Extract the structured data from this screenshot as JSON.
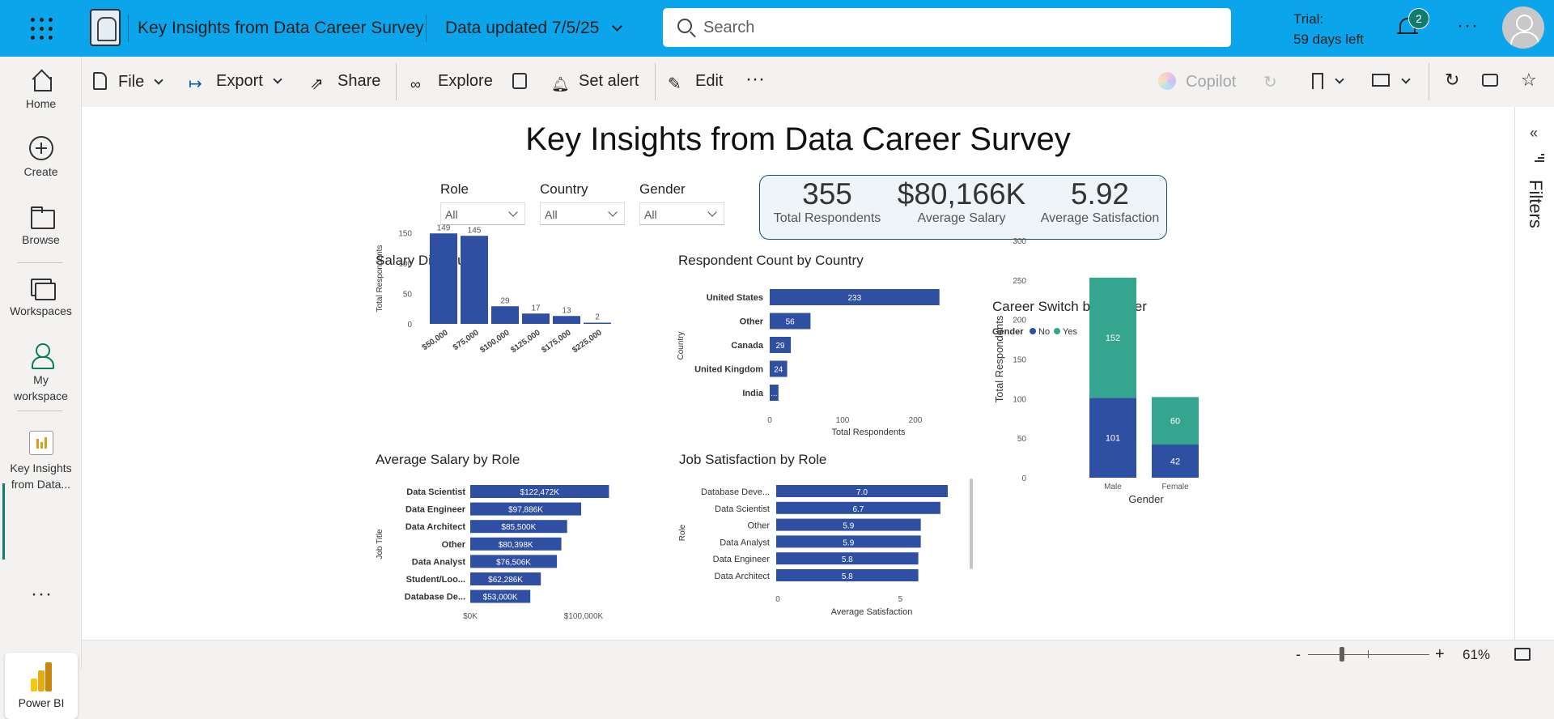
{
  "topbar": {
    "report_title": "Key Insights from Data Career Survey",
    "data_updated": "Data updated 7/5/25",
    "search_placeholder": "Search",
    "trial_line1": "Trial:",
    "trial_line2": "59 days left",
    "notification_count": "2",
    "more": "···"
  },
  "leftnav": {
    "items": [
      {
        "label": "Home"
      },
      {
        "label": "Create"
      },
      {
        "label": "Browse"
      },
      {
        "label": "Workspaces"
      },
      {
        "label": "My workspace"
      },
      {
        "label": "Key Insights from Data..."
      }
    ],
    "more": "···",
    "app_label": "Power BI"
  },
  "toolbar": {
    "file": "File",
    "export": "Export",
    "share": "Share",
    "explore": "Explore",
    "set_alert": "Set alert",
    "edit": "Edit",
    "more": "···",
    "copilot": "Copilot"
  },
  "filters_pane": {
    "label": "Filters"
  },
  "status": {
    "zoom": "61%",
    "minus": "-",
    "plus": "+"
  },
  "report": {
    "title": "Key Insights from Data Career Survey",
    "slicers": [
      {
        "label": "Role",
        "value": "All"
      },
      {
        "label": "Country",
        "value": "All"
      },
      {
        "label": "Gender",
        "value": "All"
      }
    ],
    "kpis": [
      {
        "value": "355",
        "label": "Total Respondents"
      },
      {
        "value": "$80,166K",
        "label": "Average Salary"
      },
      {
        "value": "5.92",
        "label": "Average Satisfaction"
      }
    ]
  },
  "chart_data": [
    {
      "type": "bar",
      "title": "Salary Distribution",
      "xlabel": "",
      "ylabel": "Total Respondents",
      "categories": [
        "$50,000",
        "$75,000",
        "$100,000",
        "$125,000",
        "$175,000",
        "$225,000"
      ],
      "values": [
        149,
        145,
        29,
        17,
        13,
        2
      ],
      "y_ticks": [
        0,
        50,
        100,
        150
      ],
      "ylim": [
        0,
        160
      ],
      "color": "#2f4fa3"
    },
    {
      "type": "bar",
      "orientation": "horizontal",
      "title": "Respondent Count by Country",
      "xlabel": "Total Respondents",
      "ylabel": "Country",
      "categories": [
        "United States",
        "Other",
        "Canada",
        "United Kingdom",
        "India"
      ],
      "values": [
        233,
        56,
        29,
        24,
        12
      ],
      "labels": [
        "233",
        "56",
        "29",
        "24",
        "..."
      ],
      "x_ticks": [
        0,
        100,
        200
      ],
      "xlim": [
        0,
        250
      ],
      "color": "#2f4fa3"
    },
    {
      "type": "bar",
      "orientation": "horizontal",
      "title": "Average Salary by Role",
      "xlabel": "",
      "ylabel": "Job Title",
      "categories": [
        "Data Scientist",
        "Data Engineer",
        "Data Architect",
        "Other",
        "Data Analyst",
        "Student/Loo...",
        "Database De..."
      ],
      "values": [
        122472,
        97886,
        85500,
        80398,
        76506,
        62286,
        53000
      ],
      "labels": [
        "$122,472K",
        "$97,886K",
        "$85,500K",
        "$80,398K",
        "$76,506K",
        "$62,286K",
        "$53,000K"
      ],
      "x_ticks": [
        0,
        100000
      ],
      "x_tick_labels": [
        "$0K",
        "$100,000K"
      ],
      "xlim": [
        0,
        135000
      ],
      "color": "#2f4fa3"
    },
    {
      "type": "bar",
      "orientation": "horizontal",
      "title": "Job Satisfaction by Role",
      "xlabel": "Average Satisfaction",
      "ylabel": "Role",
      "categories": [
        "Database Deve...",
        "Data Scientist",
        "Other",
        "Data Analyst",
        "Data Engineer",
        "Data Architect"
      ],
      "values": [
        7.0,
        6.7,
        5.9,
        5.9,
        5.8,
        5.8
      ],
      "labels": [
        "7.0",
        "6.7",
        "5.9",
        "5.9",
        "5.8",
        "5.8"
      ],
      "x_ticks": [
        0,
        5
      ],
      "xlim": [
        0,
        7.2
      ],
      "color": "#2f4fa3"
    },
    {
      "type": "bar",
      "stacked": true,
      "title": "Career Switch by Gender",
      "xlabel": "Gender",
      "ylabel": "Total Respondents",
      "legend_title": "Gender",
      "categories": [
        "Male",
        "Female"
      ],
      "series": [
        {
          "name": "No",
          "values": [
            101,
            42
          ],
          "color": "#2f4fa3"
        },
        {
          "name": "Yes",
          "values": [
            152,
            60
          ],
          "color": "#36a58f"
        }
      ],
      "y_ticks": [
        0,
        50,
        100,
        150,
        200,
        250,
        300
      ],
      "ylim": [
        0,
        300
      ],
      "legend_position": "top-left"
    }
  ]
}
